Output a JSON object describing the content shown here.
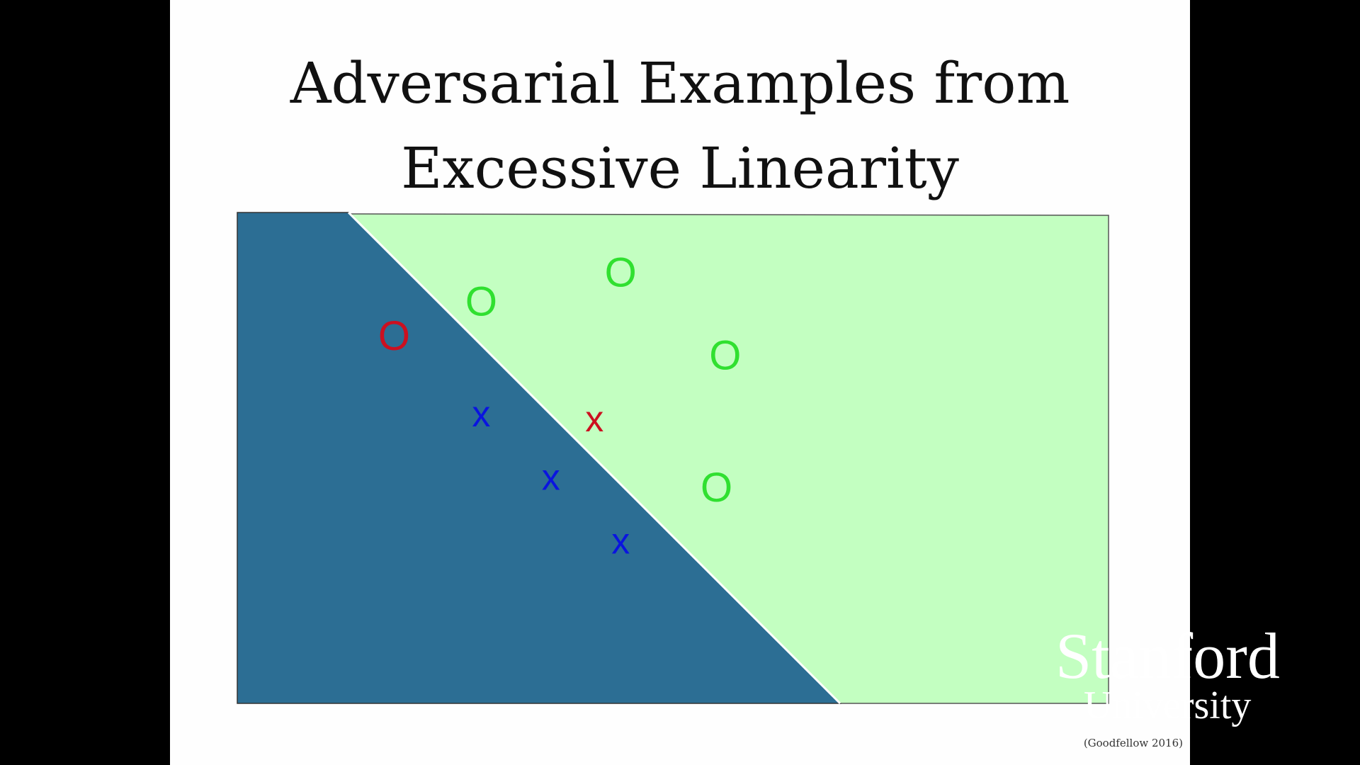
{
  "slide": {
    "title_line1": "Adversarial Examples from",
    "title_line2": "Excessive Linearity",
    "citation": "(Goodfellow 2016)"
  },
  "logo": {
    "line1": "Stanford",
    "line2": "University"
  },
  "colors": {
    "region_x": "#2c6e94",
    "region_o": "#c3ffc1",
    "boundary": "#ffffff",
    "class_o": "#30e030",
    "class_x": "#0a14e0",
    "adversarial": "#cc1020"
  },
  "diagram": {
    "markers": [
      {
        "id": "o-green-1",
        "label": "O",
        "class": "o",
        "adversarial": false,
        "x": 0.28,
        "y": 0.18
      },
      {
        "id": "o-green-2",
        "label": "O",
        "class": "o",
        "adversarial": false,
        "x": 0.44,
        "y": 0.12
      },
      {
        "id": "o-green-3",
        "label": "O",
        "class": "o",
        "adversarial": false,
        "x": 0.56,
        "y": 0.29
      },
      {
        "id": "o-green-4",
        "label": "O",
        "class": "o",
        "adversarial": false,
        "x": 0.55,
        "y": 0.56
      },
      {
        "id": "o-red",
        "label": "O",
        "class": "o",
        "adversarial": true,
        "x": 0.18,
        "y": 0.25
      },
      {
        "id": "x-blue-1",
        "label": "x",
        "class": "x",
        "adversarial": false,
        "x": 0.28,
        "y": 0.41
      },
      {
        "id": "x-blue-2",
        "label": "x",
        "class": "x",
        "adversarial": false,
        "x": 0.36,
        "y": 0.54
      },
      {
        "id": "x-blue-3",
        "label": "x",
        "class": "x",
        "adversarial": false,
        "x": 0.44,
        "y": 0.67
      },
      {
        "id": "x-red",
        "label": "x",
        "class": "x",
        "adversarial": true,
        "x": 0.41,
        "y": 0.42
      }
    ]
  }
}
